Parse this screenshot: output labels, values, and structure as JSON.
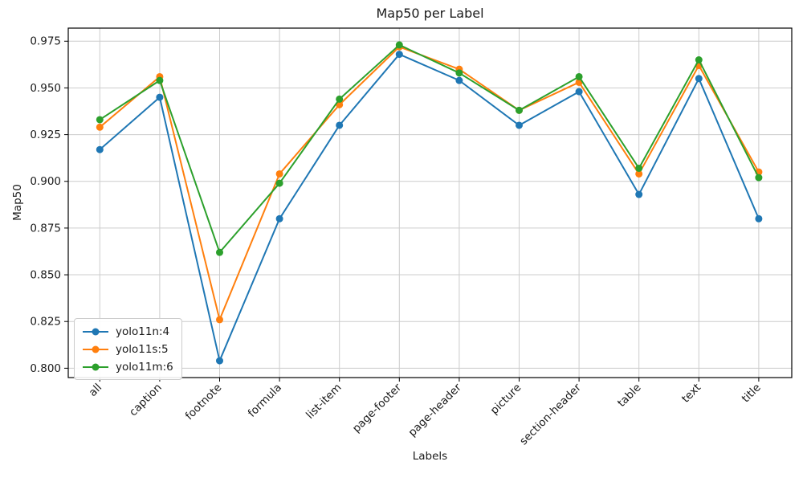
{
  "chart_data": {
    "type": "line",
    "title": "Map50 per Label",
    "xlabel": "Labels",
    "ylabel": "Map50",
    "categories": [
      "all",
      "caption",
      "footnote",
      "formula",
      "list-item",
      "page-footer",
      "page-header",
      "picture",
      "section-header",
      "table",
      "text",
      "title"
    ],
    "series": [
      {
        "name": "yolo11n:4",
        "color": "#1f77b4",
        "values": [
          0.917,
          0.945,
          0.804,
          0.88,
          0.93,
          0.968,
          0.954,
          0.93,
          0.948,
          0.893,
          0.955,
          0.88
        ]
      },
      {
        "name": "yolo11s:5",
        "color": "#ff7f0e",
        "values": [
          0.929,
          0.956,
          0.826,
          0.904,
          0.941,
          0.972,
          0.96,
          0.938,
          0.953,
          0.904,
          0.962,
          0.905
        ]
      },
      {
        "name": "yolo11m:6",
        "color": "#2ca02c",
        "values": [
          0.933,
          0.954,
          0.862,
          0.899,
          0.944,
          0.973,
          0.958,
          0.938,
          0.956,
          0.907,
          0.965,
          0.902
        ]
      }
    ],
    "ylim": [
      0.795,
      0.982
    ],
    "yticks": [
      0.8,
      0.825,
      0.85,
      0.875,
      0.9,
      0.925,
      0.95,
      0.975
    ],
    "ytick_decimals": 3,
    "x_tick_rotation_deg": 45,
    "grid": true,
    "grid_color": "#cccccc",
    "legend_position": "lower-left",
    "marker": "circle",
    "line_width": 2,
    "marker_radius": 4.5
  }
}
